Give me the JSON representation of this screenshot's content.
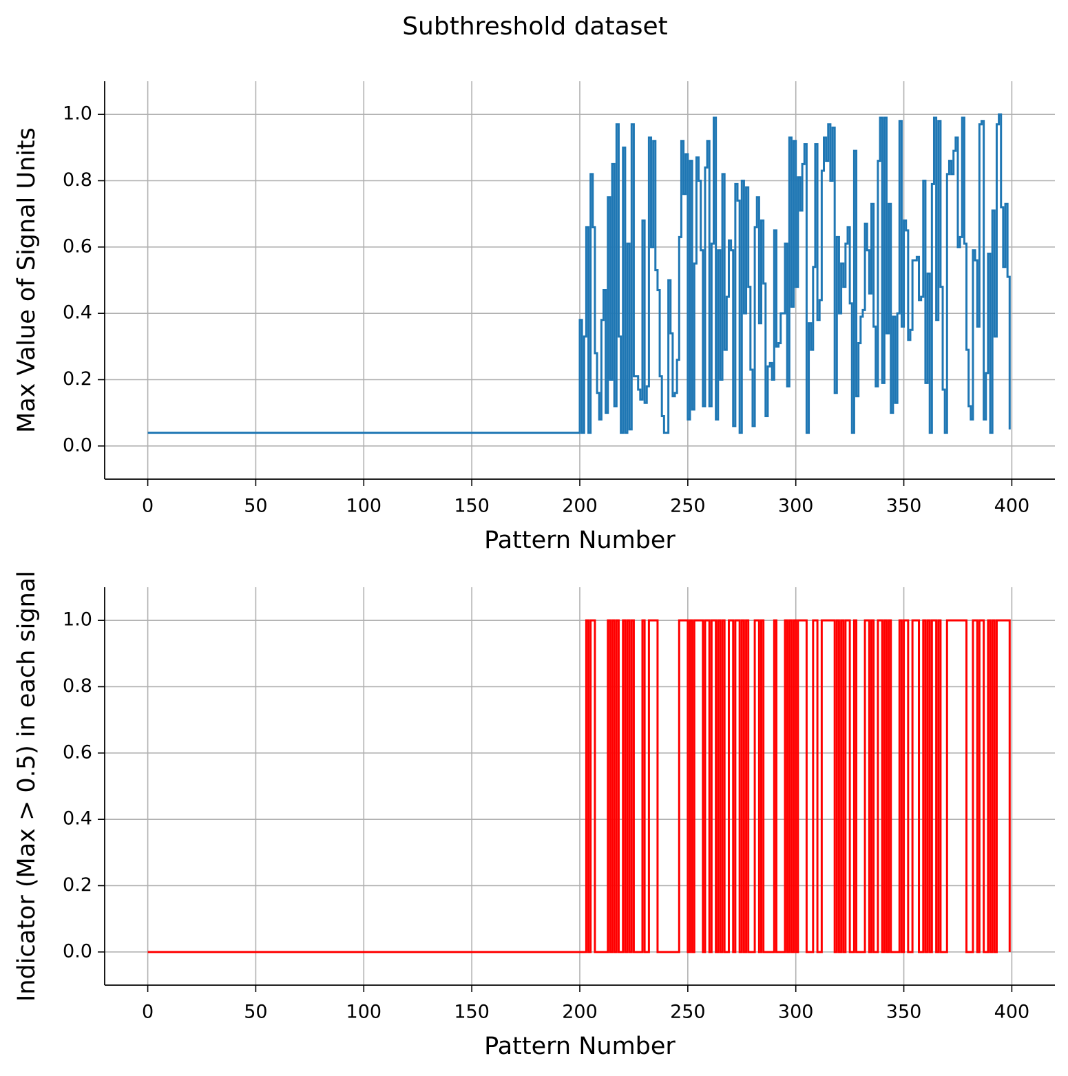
{
  "title": "Subthreshold dataset",
  "chart_data": [
    {
      "type": "line",
      "drawstyle": "steps-post",
      "xlabel": "Pattern Number",
      "ylabel": "Max Value of Signal Units",
      "xlim": [
        -19.95,
        419.95
      ],
      "ylim": [
        -0.1,
        1.1
      ],
      "xticks": [
        0,
        50,
        100,
        150,
        200,
        250,
        300,
        350,
        400
      ],
      "yticks": [
        {
          "value": 0,
          "label": "0.0"
        },
        0.2,
        0.4,
        0.6,
        0.8,
        {
          "value": 1,
          "label": "1.0"
        }
      ],
      "grid": true,
      "series": [
        {
          "color": "#1f77b4",
          "x": [
            0,
            200,
            201,
            202,
            203,
            204,
            205,
            206,
            207,
            208,
            209,
            210,
            211,
            212,
            213,
            214,
            215,
            216,
            217,
            218,
            219,
            220,
            221,
            222,
            223,
            224,
            225,
            226,
            227,
            228,
            229,
            230,
            231,
            232,
            233,
            234,
            235,
            236,
            237,
            238,
            239,
            240,
            241,
            242,
            243,
            244,
            245,
            246,
            247,
            248,
            249,
            250,
            251,
            252,
            253,
            254,
            255,
            256,
            257,
            258,
            259,
            260,
            261,
            262,
            263,
            264,
            265,
            266,
            267,
            268,
            269,
            270,
            271,
            272,
            273,
            274,
            275,
            276,
            277,
            278,
            279,
            280,
            281,
            282,
            283,
            284,
            285,
            286,
            287,
            288,
            289,
            290,
            291,
            292,
            293,
            294,
            295,
            296,
            297,
            298,
            299,
            300,
            301,
            302,
            303,
            304,
            305,
            306,
            307,
            308,
            309,
            310,
            311,
            312,
            313,
            314,
            315,
            316,
            317,
            318,
            319,
            320,
            321,
            322,
            323,
            324,
            325,
            326,
            327,
            328,
            329,
            330,
            331,
            332,
            333,
            334,
            335,
            336,
            337,
            338,
            339,
            340,
            341,
            342,
            343,
            344,
            345,
            346,
            347,
            348,
            349,
            350,
            351,
            352,
            353,
            354,
            355,
            356,
            357,
            358,
            359,
            360,
            361,
            362,
            363,
            364,
            365,
            366,
            367,
            368,
            369,
            370,
            371,
            372,
            373,
            374,
            375,
            376,
            377,
            378,
            379,
            380,
            381,
            382,
            383,
            384,
            385,
            386,
            387,
            388,
            389,
            390,
            391,
            392,
            393,
            394,
            395,
            396,
            397,
            398,
            399
          ],
          "values": [
            0.04,
            0.38,
            0.04,
            0.33,
            0.66,
            0.04,
            0.82,
            0.66,
            0.28,
            0.16,
            0.08,
            0.38,
            0.47,
            0.1,
            0.75,
            0.2,
            0.85,
            0.12,
            0.97,
            0.33,
            0.04,
            0.9,
            0.04,
            0.61,
            0.05,
            0.97,
            0.21,
            0.21,
            0.17,
            0.14,
            0.68,
            0.13,
            0.18,
            0.93,
            0.6,
            0.92,
            0.53,
            0.47,
            0.21,
            0.09,
            0.04,
            0.04,
            0.5,
            0.34,
            0.15,
            0.16,
            0.26,
            0.63,
            0.92,
            0.76,
            0.88,
            0.08,
            0.86,
            0.11,
            0.55,
            0.87,
            0.8,
            0.59,
            0.12,
            0.84,
            0.92,
            0.12,
            0.61,
            0.99,
            0.08,
            0.59,
            0.2,
            0.82,
            0.29,
            0.45,
            0.62,
            0.59,
            0.06,
            0.79,
            0.74,
            0.04,
            0.8,
            0.4,
            0.78,
            0.48,
            0.23,
            0.06,
            0.66,
            0.75,
            0.37,
            0.68,
            0.49,
            0.09,
            0.24,
            0.25,
            0.2,
            0.65,
            0.3,
            0.31,
            0.4,
            0.4,
            0.61,
            0.18,
            0.93,
            0.42,
            0.92,
            0.48,
            0.81,
            0.71,
            0.85,
            0.91,
            0.04,
            0.37,
            0.29,
            0.54,
            0.91,
            0.38,
            0.44,
            0.83,
            0.93,
            0.86,
            0.97,
            0.8,
            0.96,
            0.16,
            0.63,
            0.4,
            0.55,
            0.48,
            0.61,
            0.66,
            0.43,
            0.04,
            0.89,
            0.15,
            0.31,
            0.39,
            0.41,
            0.67,
            0.59,
            0.46,
            0.73,
            0.36,
            0.18,
            0.86,
            0.99,
            0.19,
            0.99,
            0.34,
            0.73,
            0.1,
            0.39,
            0.13,
            0.4,
            0.98,
            0.36,
            0.68,
            0.65,
            0.32,
            0.35,
            0.56,
            0.56,
            0.57,
            0.44,
            0.45,
            0.8,
            0.19,
            0.52,
            0.04,
            0.79,
            0.99,
            0.38,
            0.98,
            0.48,
            0.17,
            0.04,
            0.82,
            0.86,
            0.82,
            0.89,
            0.93,
            0.6,
            0.63,
            0.99,
            0.61,
            0.29,
            0.12,
            0.08,
            0.59,
            0.56,
            0.36,
            0.97,
            0.98,
            0.08,
            0.22,
            0.58,
            0.04,
            0.71,
            0.33,
            0.97,
            1.0,
            0.72,
            0.54,
            0.73,
            0.51,
            0.05
          ]
        }
      ]
    },
    {
      "type": "line",
      "drawstyle": "steps-post",
      "xlabel": "Pattern Number",
      "ylabel": "Indicator (Max > 0.5) in each signal",
      "xlim": [
        -19.95,
        419.95
      ],
      "ylim": [
        -0.1,
        1.1
      ],
      "xticks": [
        0,
        50,
        100,
        150,
        200,
        250,
        300,
        350,
        400
      ],
      "yticks": [
        {
          "value": 0,
          "label": "0.0"
        },
        0.2,
        0.4,
        0.6,
        0.8,
        {
          "value": 1,
          "label": "1.0"
        }
      ],
      "grid": true,
      "series": [
        {
          "color": "#ff0000",
          "x": [
            0,
            200,
            201,
            202,
            203,
            204,
            205,
            206,
            207,
            208,
            209,
            210,
            211,
            212,
            213,
            214,
            215,
            216,
            217,
            218,
            219,
            220,
            221,
            222,
            223,
            224,
            225,
            226,
            227,
            228,
            229,
            230,
            231,
            232,
            233,
            234,
            235,
            236,
            237,
            238,
            239,
            240,
            241,
            242,
            243,
            244,
            245,
            246,
            247,
            248,
            249,
            250,
            251,
            252,
            253,
            254,
            255,
            256,
            257,
            258,
            259,
            260,
            261,
            262,
            263,
            264,
            265,
            266,
            267,
            268,
            269,
            270,
            271,
            272,
            273,
            274,
            275,
            276,
            277,
            278,
            279,
            280,
            281,
            282,
            283,
            284,
            285,
            286,
            287,
            288,
            289,
            290,
            291,
            292,
            293,
            294,
            295,
            296,
            297,
            298,
            299,
            300,
            301,
            302,
            303,
            304,
            305,
            306,
            307,
            308,
            309,
            310,
            311,
            312,
            313,
            314,
            315,
            316,
            317,
            318,
            319,
            320,
            321,
            322,
            323,
            324,
            325,
            326,
            327,
            328,
            329,
            330,
            331,
            332,
            333,
            334,
            335,
            336,
            337,
            338,
            339,
            340,
            341,
            342,
            343,
            344,
            345,
            346,
            347,
            348,
            349,
            350,
            351,
            352,
            353,
            354,
            355,
            356,
            357,
            358,
            359,
            360,
            361,
            362,
            363,
            364,
            365,
            366,
            367,
            368,
            369,
            370,
            371,
            372,
            373,
            374,
            375,
            376,
            377,
            378,
            379,
            380,
            381,
            382,
            383,
            384,
            385,
            386,
            387,
            388,
            389,
            390,
            391,
            392,
            393,
            394,
            395,
            396,
            397,
            398,
            399
          ],
          "values": [
            0,
            0,
            0,
            0,
            1,
            0,
            1,
            1,
            0,
            0,
            0,
            0,
            0,
            0,
            1,
            0,
            1,
            0,
            1,
            0,
            0,
            1,
            0,
            1,
            0,
            1,
            0,
            0,
            0,
            0,
            1,
            0,
            0,
            1,
            1,
            1,
            1,
            0,
            0,
            0,
            0,
            0,
            0,
            0,
            0,
            0,
            0,
            1,
            1,
            1,
            1,
            0,
            1,
            0,
            1,
            1,
            1,
            1,
            0,
            1,
            1,
            0,
            1,
            1,
            0,
            1,
            0,
            1,
            0,
            0,
            1,
            1,
            0,
            1,
            1,
            0,
            1,
            0,
            1,
            0,
            0,
            0,
            1,
            1,
            0,
            1,
            0,
            0,
            0,
            0,
            0,
            1,
            0,
            0,
            0,
            0,
            1,
            0,
            1,
            0,
            1,
            0,
            1,
            1,
            1,
            1,
            0,
            0,
            0,
            1,
            1,
            0,
            0,
            1,
            1,
            1,
            1,
            1,
            1,
            0,
            1,
            0,
            1,
            0,
            1,
            1,
            0,
            0,
            1,
            0,
            0,
            0,
            0,
            1,
            1,
            0,
            1,
            0,
            0,
            1,
            1,
            0,
            1,
            0,
            1,
            0,
            0,
            0,
            0,
            1,
            0,
            1,
            1,
            0,
            0,
            1,
            1,
            1,
            0,
            0,
            1,
            0,
            1,
            0,
            1,
            1,
            0,
            1,
            0,
            0,
            0,
            1,
            1,
            1,
            1,
            1,
            1,
            1,
            1,
            1,
            0,
            0,
            0,
            1,
            1,
            0,
            1,
            1,
            0,
            0,
            1,
            0,
            1,
            0,
            1,
            1,
            1,
            1,
            1,
            1,
            0
          ]
        }
      ]
    }
  ]
}
